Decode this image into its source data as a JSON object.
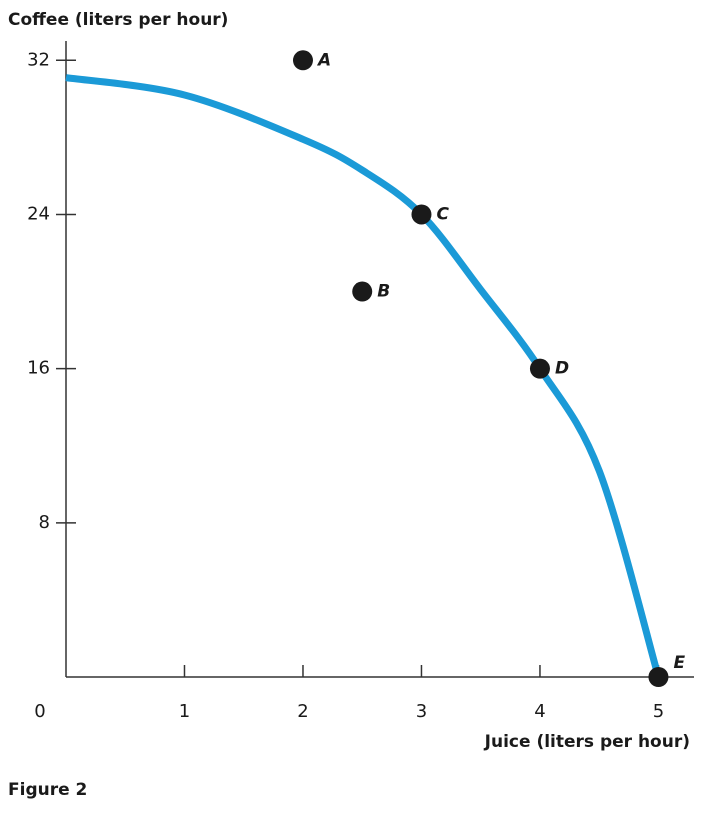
{
  "chart_data": {
    "type": "line",
    "y_label": "Coffee (liters per hour)",
    "x_label": "Juice (liters per hour)",
    "caption": "Figure 2",
    "x": [
      0,
      1,
      2,
      2.5,
      3,
      3.5,
      4,
      4.5,
      5
    ],
    "values": [
      31.1,
      30.2,
      27.9,
      26.3,
      24,
      20.1,
      16,
      10.7,
      0
    ],
    "color": "#1b9ad7",
    "points": {
      "labels": [
        "A",
        "B",
        "C",
        "D",
        "E"
      ],
      "x": [
        2,
        2.5,
        3,
        4,
        5
      ],
      "y": [
        32,
        20,
        24,
        16,
        0
      ],
      "color": "#1a1a1a"
    },
    "xlim": [
      0,
      5.3
    ],
    "xticks": [
      0,
      1,
      2,
      3,
      4,
      5
    ],
    "ylim": [
      0,
      33
    ],
    "yticks": [
      8,
      16,
      24,
      32
    ],
    "grid": false
  }
}
